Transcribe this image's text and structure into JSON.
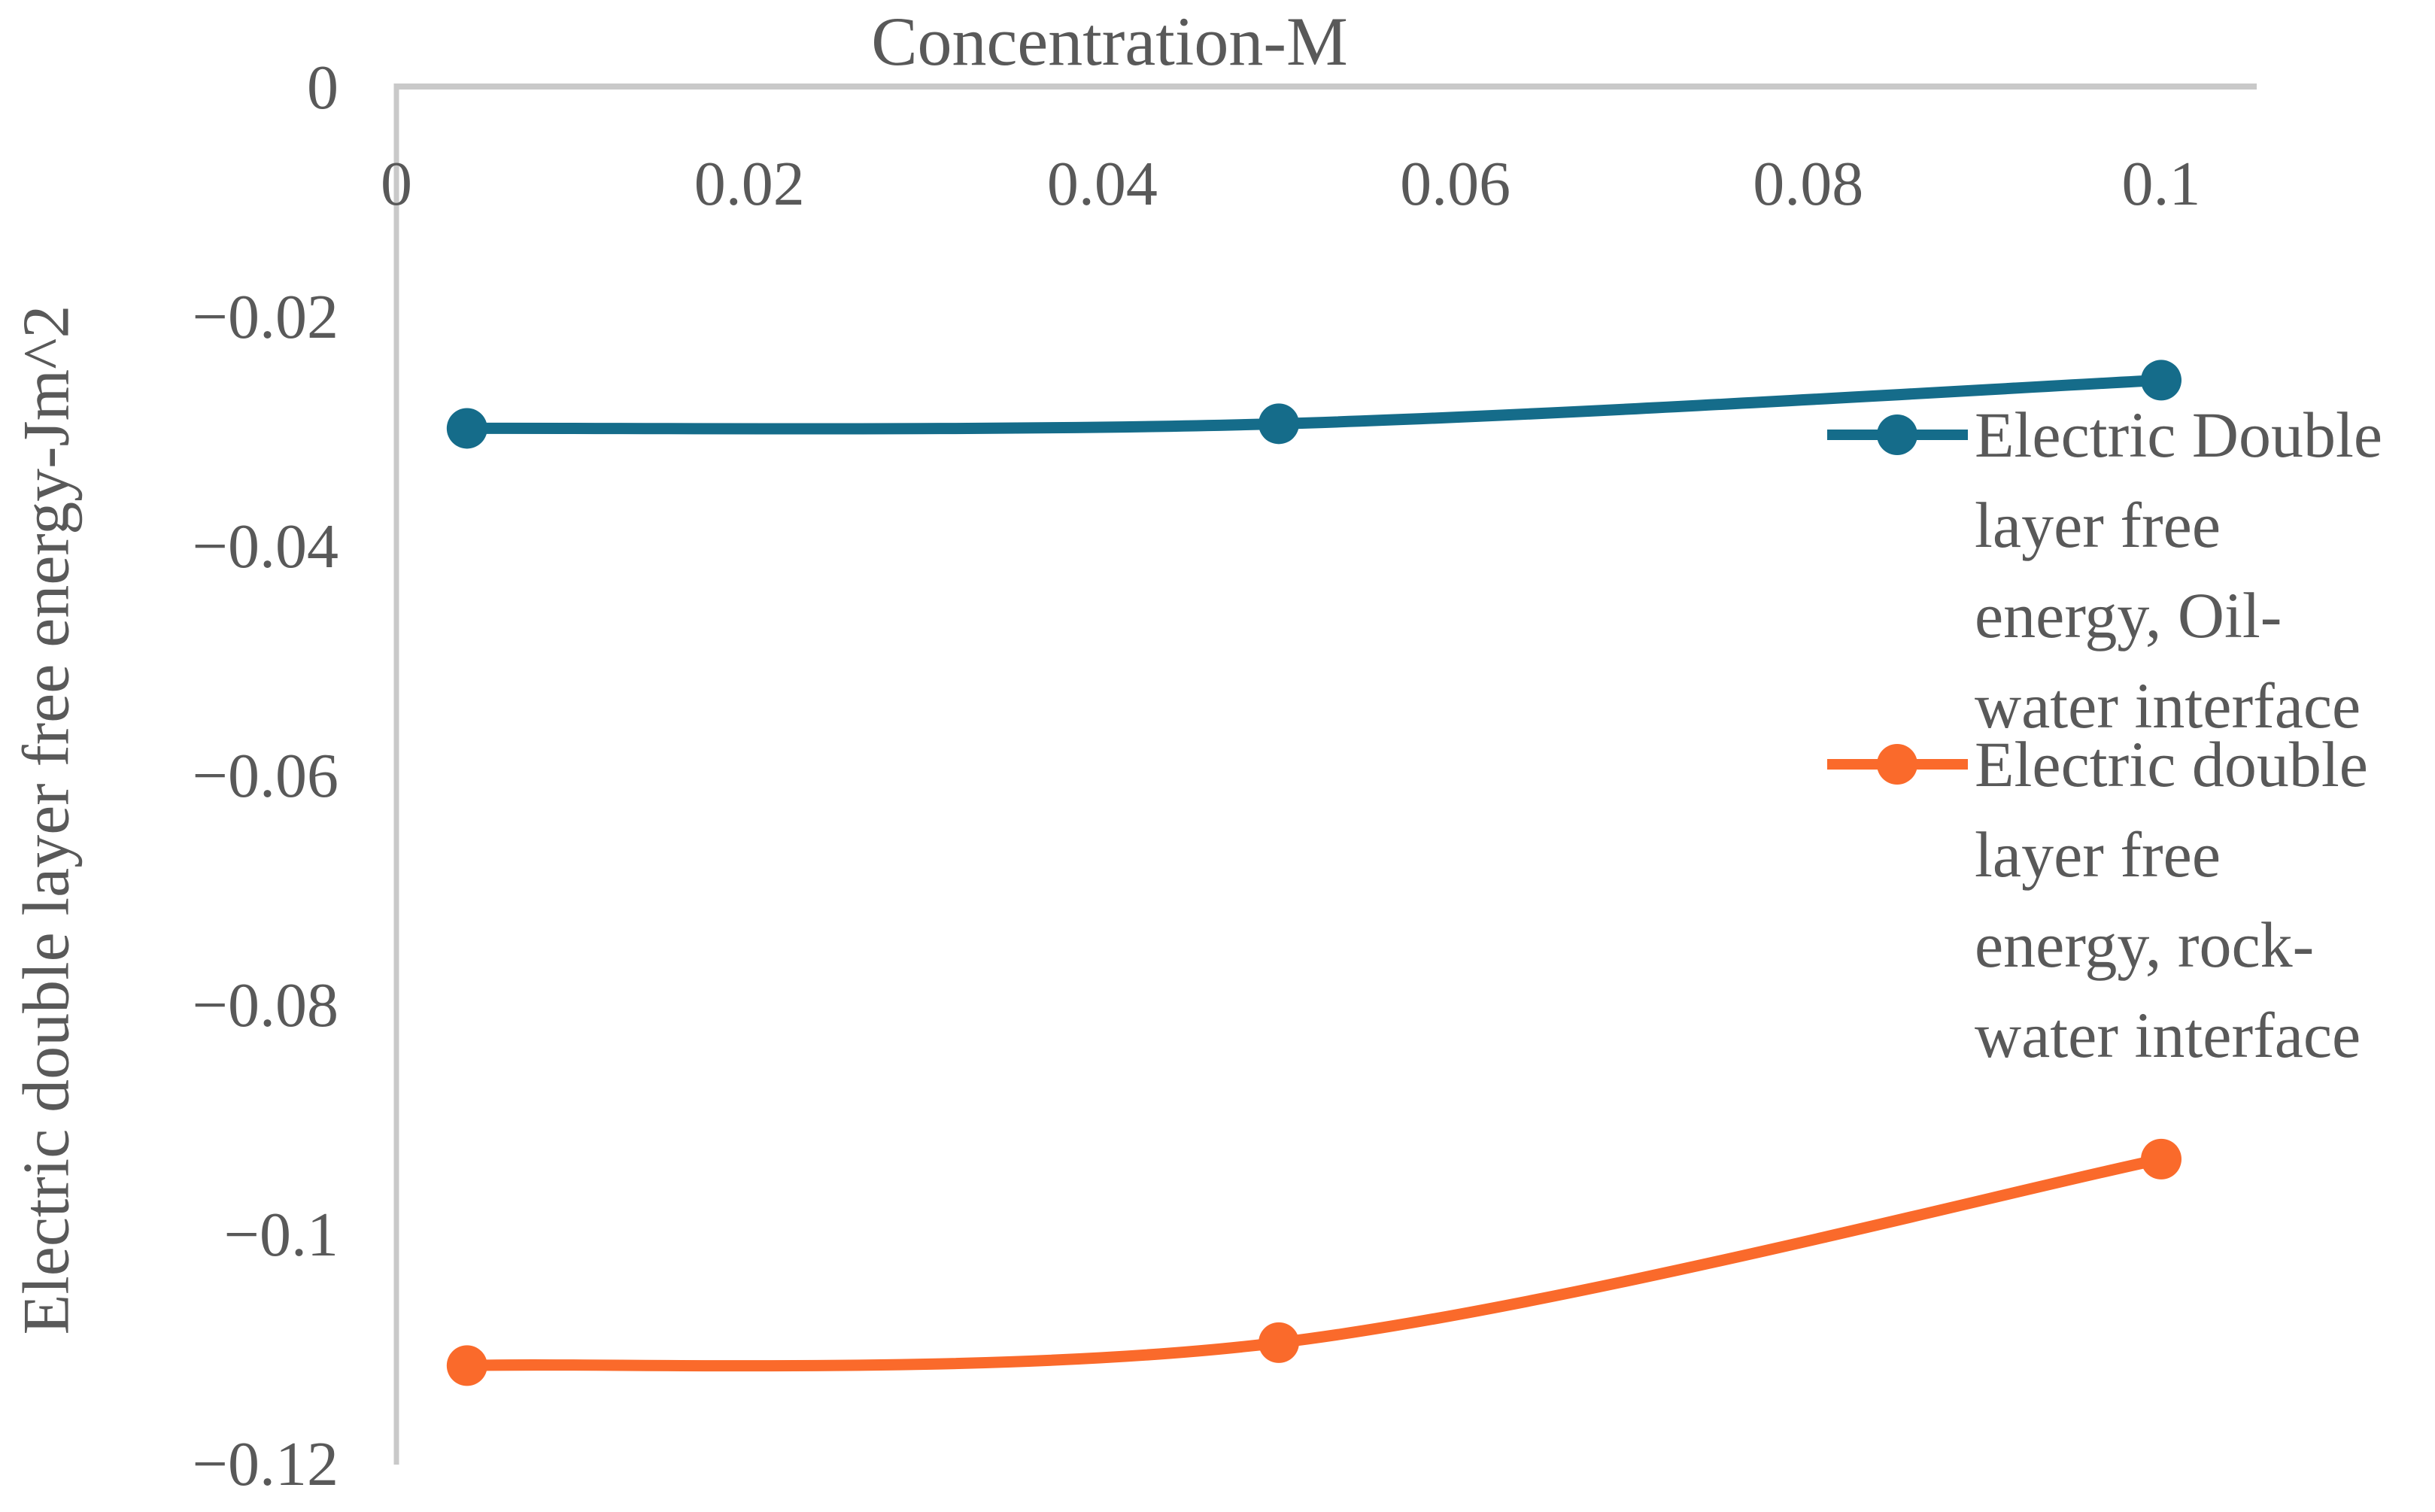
{
  "chart_data": {
    "type": "line",
    "title": "Concentration-M",
    "xlabel": "Concentration-M",
    "ylabel": "Electric double layer free energy-Jm^2",
    "x_tick_values": [
      0,
      0.02,
      0.04,
      0.06,
      0.08,
      0.1
    ],
    "x_tick_labels": [
      "0",
      "0.02",
      "0.04",
      "0.06",
      "0.08",
      "0.1"
    ],
    "y_tick_values": [
      0,
      -0.02,
      -0.04,
      -0.06,
      -0.08,
      -0.1,
      -0.12
    ],
    "y_tick_labels": [
      "0",
      "−0.02",
      "−0.04",
      "−0.06",
      "−0.08",
      "−0.1",
      "−0.12"
    ],
    "xlim": [
      0,
      0.105
    ],
    "ylim": [
      -0.12,
      0
    ],
    "grid": false,
    "legend_position": "right",
    "axis_color": "#C9C9C9",
    "text_color": "#595959",
    "series": [
      {
        "name": "Electric Double layer free energy, Oil-water interface",
        "legend_lines": [
          "Electric Double",
          "layer free",
          "energy, Oil-",
          "water interface"
        ],
        "color": "#156C8A",
        "x": [
          0.004,
          0.05,
          0.1
        ],
        "y": [
          -0.0298,
          -0.0294,
          -0.0256
        ]
      },
      {
        "name": "Electric double layer free energy, rock-water interface",
        "legend_lines": [
          "Electric double",
          "layer free",
          "energy, rock-",
          "water interface"
        ],
        "color": "#FA6A2B",
        "x": [
          0.004,
          0.05,
          0.1
        ],
        "y": [
          -0.1115,
          -0.1095,
          -0.0935
        ]
      }
    ]
  }
}
